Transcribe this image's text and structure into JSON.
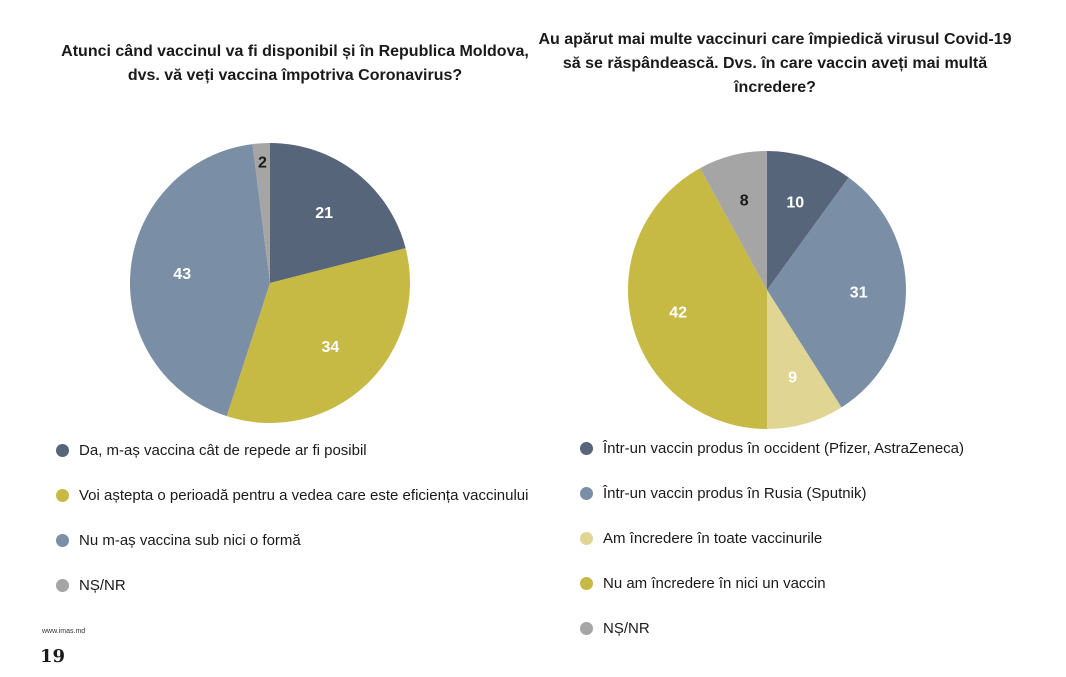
{
  "chart_data": [
    {
      "type": "pie",
      "title": "Atunci când vaccinul va fi disponibil și în Republica Moldova, dvs. vă veți vaccina împotriva Coronavirus?",
      "categories": [
        "Da, m-aș vaccina cât de repede ar fi posibil",
        "Voi aștepta o perioadă pentru a vedea care este eficiența vaccinului",
        "Nu m-aș vaccina sub nici o formă",
        "NȘ/NR"
      ],
      "values": [
        21,
        34,
        43,
        2
      ],
      "value_labels": [
        "21",
        "34",
        "43",
        "2"
      ],
      "colors": [
        "#56657a",
        "#c6b944",
        "#7a8ea6",
        "#a5a5a5"
      ],
      "label_colors": [
        "#ffffff",
        "#ffffff",
        "#ffffff",
        "#1a1a1a"
      ],
      "legend_position": "bottom"
    },
    {
      "type": "pie",
      "title": "Au apărut mai multe vaccinuri care împiedică virusul Covid-19 să se răspândească. Dvs. în care vaccin aveți mai multă încredere?",
      "categories": [
        "Într-un vaccin produs în occident (Pfizer, AstraZeneca)",
        "Într-un vaccin produs în Rusia (Sputnik)",
        "Am încredere în  toate vaccinurile",
        "Nu am încredere  în nici un vaccin",
        "NȘ/NR"
      ],
      "values": [
        10,
        31,
        9,
        42,
        8
      ],
      "value_labels": [
        "10",
        "31",
        "9",
        "42",
        "8"
      ],
      "colors": [
        "#56657a",
        "#7a8ea6",
        "#e0d592",
        "#c6b944",
        "#a5a5a5"
      ],
      "label_colors": [
        "#ffffff",
        "#ffffff",
        "#ffffff",
        "#ffffff",
        "#1a1a1a"
      ],
      "legend_position": "bottom"
    }
  ],
  "footer": {
    "url": "www.imas.md",
    "page_number": "19"
  }
}
